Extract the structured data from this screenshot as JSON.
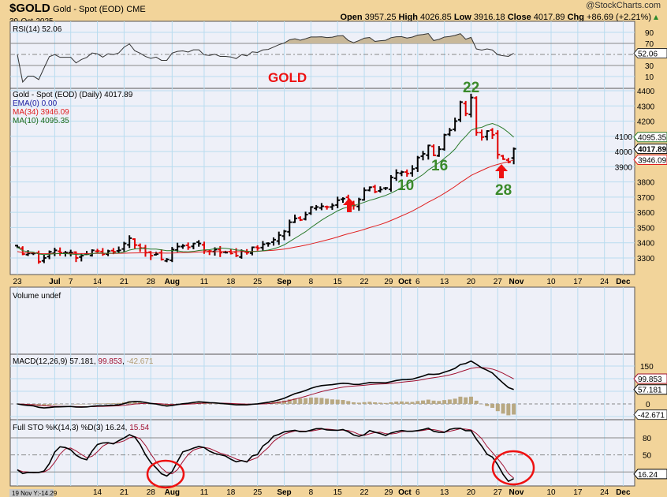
{
  "header": {
    "symbol": "$GOLD",
    "name": "Gold - Spot (EOD)",
    "exchange": "CME",
    "date": "30-Oct-2025",
    "brand": "@StockCharts.com",
    "open_label": "Open",
    "open": "3957.25",
    "high_label": "High",
    "high": "4026.85",
    "low_label": "Low",
    "low": "3916.18",
    "close_label": "Close",
    "close": "4017.89",
    "chg_label": "Chg",
    "chg": "+86.69 (+2.21%)"
  },
  "colors": {
    "background": "#f2d49a",
    "plot": "#eef0f8",
    "grid": "#b9dcef",
    "up": "#000000",
    "down": "#e00000",
    "ma10": "#2a7a2a",
    "ma34": "#e02020",
    "annotation": "#3a8a2a"
  },
  "rsi_panel": {
    "legend": "RSI(14) 52.06",
    "value_label": "52.06",
    "ticks": [
      "90",
      "70",
      "30",
      "10"
    ]
  },
  "price_panel": {
    "legend": "Gold - Spot (EOD) (Daily) 4017.89",
    "ema_legend": "EMA(0) 0.00",
    "ma34_legend": "MA(34) 3946.09",
    "ma10_legend": "MA(10) 4095.35",
    "ma10_value": "4095.35",
    "close_value": "4017.89",
    "ma34_value": "3946.09",
    "ticks": [
      "4400",
      "4300",
      "4200",
      "4100",
      "4000",
      "3900",
      "3800",
      "3700",
      "3600",
      "3500",
      "3400",
      "3300"
    ],
    "annotations": {
      "title": "GOLD",
      "a22": "22",
      "a16": "16",
      "a10": "10",
      "a28": "28"
    }
  },
  "volume_panel": {
    "legend": "Volume undef"
  },
  "macd_panel": {
    "legend_name": "MACD(12,26,9)",
    "macd": "57.181",
    "signal": "99.853",
    "hist": "-42.671",
    "ticks": [
      "150",
      "0"
    ]
  },
  "sto_panel": {
    "legend_name": "Full STO %K(14,3) %D(3)",
    "k": "16.24",
    "d": "15.54",
    "ticks": [
      "80",
      "50"
    ],
    "value_label": "16.24"
  },
  "cursor_readout": "19 Nov Y:-14.29",
  "chart_data": {
    "type": "ohlc",
    "x_tick_labels": [
      "23",
      "Jul",
      "7",
      "14",
      "21",
      "28",
      "Aug",
      "11",
      "18",
      "25",
      "Sep",
      "8",
      "15",
      "22",
      "29",
      "Oct",
      "6",
      "13",
      "20",
      "27",
      "Nov",
      "10",
      "17",
      "24",
      "Dec"
    ],
    "ylim": [
      3200,
      4420
    ],
    "weeks": [
      {
        "week": "2025-06-23",
        "closes": [
          3370,
          3325,
          3330,
          3330,
          3275
        ]
      },
      {
        "week": "2025-06-30",
        "closes": [
          3300,
          3340,
          3350,
          3335,
          3335
        ]
      },
      {
        "week": "2025-07-07",
        "closes": [
          3335,
          3300,
          3315,
          3325,
          3350
        ]
      },
      {
        "week": "2025-07-14",
        "closes": [
          3345,
          3325,
          3345,
          3340,
          3350
        ]
      },
      {
        "week": "2025-07-21",
        "closes": [
          3395,
          3430,
          3385,
          3365,
          3335
        ]
      },
      {
        "week": "2025-07-28",
        "closes": [
          3315,
          3325,
          3290,
          3290,
          3355
        ]
      },
      {
        "week": "2025-08-04",
        "closes": [
          3375,
          3380,
          3370,
          3395,
          3395
        ]
      },
      {
        "week": "2025-08-11",
        "closes": [
          3350,
          3345,
          3355,
          3335,
          3335
        ]
      },
      {
        "week": "2025-08-18",
        "closes": [
          3330,
          3315,
          3345,
          3335,
          3370
        ]
      },
      {
        "week": "2025-08-25",
        "closes": [
          3365,
          3390,
          3395,
          3420,
          3450
        ]
      },
      {
        "week": "2025-09-01",
        "closes": [
          3475,
          3535,
          3560,
          3550,
          3585
        ]
      },
      {
        "week": "2025-09-08",
        "closes": [
          3635,
          3635,
          3640,
          3635,
          3645
        ]
      },
      {
        "week": "2025-09-15",
        "closes": [
          3680,
          3690,
          3660,
          3645,
          3685
        ]
      },
      {
        "week": "2025-09-22",
        "closes": [
          3745,
          3765,
          3735,
          3750,
          3760
        ]
      },
      {
        "week": "2025-09-29",
        "closes": [
          3830,
          3860,
          3865,
          3855,
          3885
        ]
      },
      {
        "week": "2025-10-06",
        "closes": [
          3960,
          3985,
          4040,
          3975,
          4015
        ]
      },
      {
        "week": "2025-10-13",
        "closes": [
          4110,
          4140,
          4200,
          4325,
          4250
        ]
      },
      {
        "week": "2025-10-20",
        "closes": [
          4355,
          4125,
          4095,
          4135,
          4110
        ]
      },
      {
        "week": "2025-10-27",
        "closes": [
          3980,
          3950,
          3930,
          4017.89
        ]
      }
    ]
  }
}
